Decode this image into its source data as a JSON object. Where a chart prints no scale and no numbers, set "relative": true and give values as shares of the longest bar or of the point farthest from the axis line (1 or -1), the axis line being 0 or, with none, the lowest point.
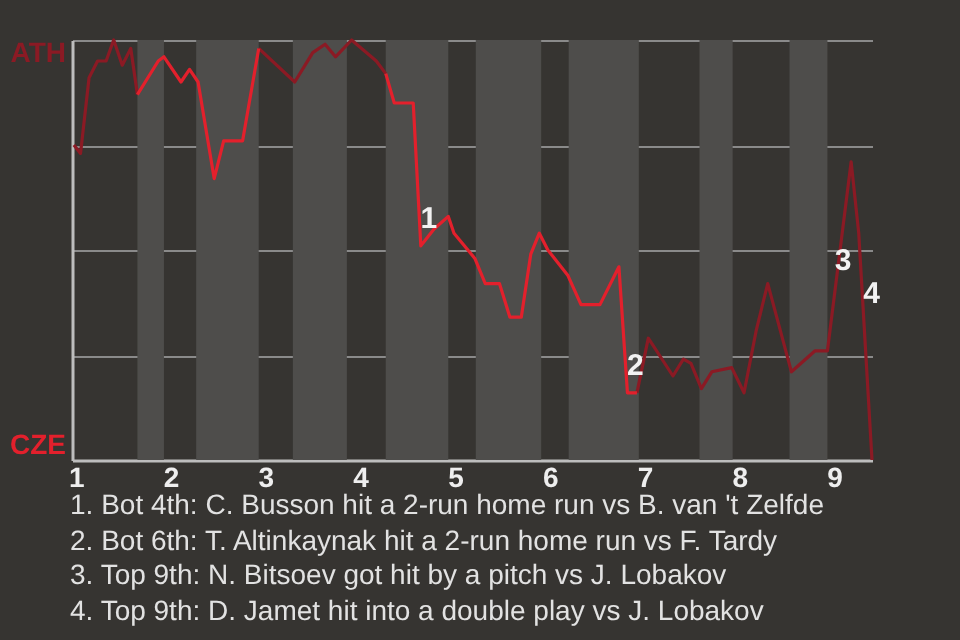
{
  "chart_data": {
    "type": "line",
    "x": [
      0.98,
      1.05,
      1.14,
      1.23,
      1.32,
      1.4,
      1.49,
      1.58,
      1.65,
      1.87,
      1.93,
      2.11,
      2.2,
      2.29,
      2.46,
      2.56,
      2.76,
      2.93,
      3.31,
      3.5,
      3.63,
      3.74,
      3.91,
      4.17,
      4.27,
      4.36,
      4.56,
      4.64,
      4.78,
      4.93,
      4.99,
      5.21,
      5.32,
      5.47,
      5.58,
      5.7,
      5.8,
      5.89,
      5.98,
      6.19,
      6.33,
      6.53,
      6.73,
      6.82,
      6.92,
      7.04,
      7.3,
      7.41,
      7.49,
      7.6,
      7.71,
      7.92,
      8.05,
      8.18,
      8.3,
      8.55,
      8.8,
      8.93,
      9.18,
      9.26,
      9.4
    ],
    "series": [
      {
        "color": "#8b1a24",
        "values": [
          0.75,
          0.73,
          0.91,
          0.95,
          0.95,
          1.0,
          0.94,
          0.98,
          0.87,
          null,
          null,
          null,
          null,
          null,
          null,
          null,
          null,
          0.98,
          0.9,
          0.97,
          0.99,
          0.96,
          1.0,
          0.95,
          0.92,
          null,
          null,
          null,
          null,
          null,
          null,
          null,
          null,
          null,
          null,
          null,
          null,
          null,
          null,
          null,
          null,
          null,
          null,
          null,
          0.16,
          0.29,
          0.2,
          0.24,
          0.23,
          0.17,
          0.21,
          0.22,
          0.16,
          0.31,
          0.42,
          0.21,
          0.26,
          0.26,
          0.71,
          0.54,
          0
        ]
      },
      {
        "color": "#e3202c",
        "values": [
          null,
          null,
          null,
          null,
          null,
          null,
          null,
          null,
          0.87,
          0.95,
          0.96,
          0.9,
          0.93,
          0.9,
          0.67,
          0.76,
          0.76,
          0.98,
          null,
          null,
          null,
          null,
          null,
          null,
          0.92,
          0.85,
          0.85,
          0.51,
          0.55,
          0.58,
          0.54,
          0.48,
          0.42,
          0.42,
          0.34,
          0.34,
          0.49,
          0.54,
          0.5,
          0.44,
          0.37,
          0.37,
          0.46,
          0.16,
          0.16,
          null,
          null,
          null,
          null,
          null,
          null,
          null,
          null,
          null,
          null,
          null,
          null,
          null,
          null,
          null,
          null
        ]
      }
    ],
    "relative": true,
    "xlim": [
      0.96,
      9.4
    ],
    "xticks": [
      1,
      2,
      3,
      4,
      5,
      6,
      7,
      8,
      9
    ],
    "grid": "y",
    "marker": "none",
    "line_style": "solid",
    "bands": [
      {
        "axis": "x",
        "from": 1.65,
        "to": 1.93,
        "color": "#4e4d4b"
      },
      {
        "axis": "x",
        "from": 2.27,
        "to": 2.93,
        "color": "#4e4d4b"
      },
      {
        "axis": "x",
        "from": 3.29,
        "to": 3.86,
        "color": "#4e4d4b"
      },
      {
        "axis": "x",
        "from": 4.27,
        "to": 4.93,
        "color": "#4e4d4b"
      },
      {
        "axis": "x",
        "from": 5.22,
        "to": 5.91,
        "color": "#4e4d4b"
      },
      {
        "axis": "x",
        "from": 6.2,
        "to": 6.94,
        "color": "#4e4d4b"
      },
      {
        "axis": "x",
        "from": 7.58,
        "to": 7.93,
        "color": "#4e4d4b"
      },
      {
        "axis": "x",
        "from": 8.53,
        "to": 8.93,
        "color": "#4e4d4b"
      }
    ],
    "annotations": [
      "ATH",
      "CZE",
      {
        "text": "1",
        "x": 4.64,
        "y": 0.51
      },
      {
        "text": "2",
        "x": 6.82,
        "y": 0.16
      },
      {
        "text": "3",
        "x": 9.01,
        "y": 0.41
      },
      {
        "text": "4",
        "x": 9.31,
        "y": 0.33
      },
      "1. Bot 4th: C. Busson hit a 2-run home run vs B. van 't Zelfde",
      "2. Bot 6th: T. Altinkaynak hit a 2-run home run vs F. Tardy",
      "3. Top 9th: N. Bitsoev got hit by a pitch vs J. Lobakov",
      "4. Top 9th: D. Jamet hit into a double play vs J. Lobakov"
    ]
  }
}
